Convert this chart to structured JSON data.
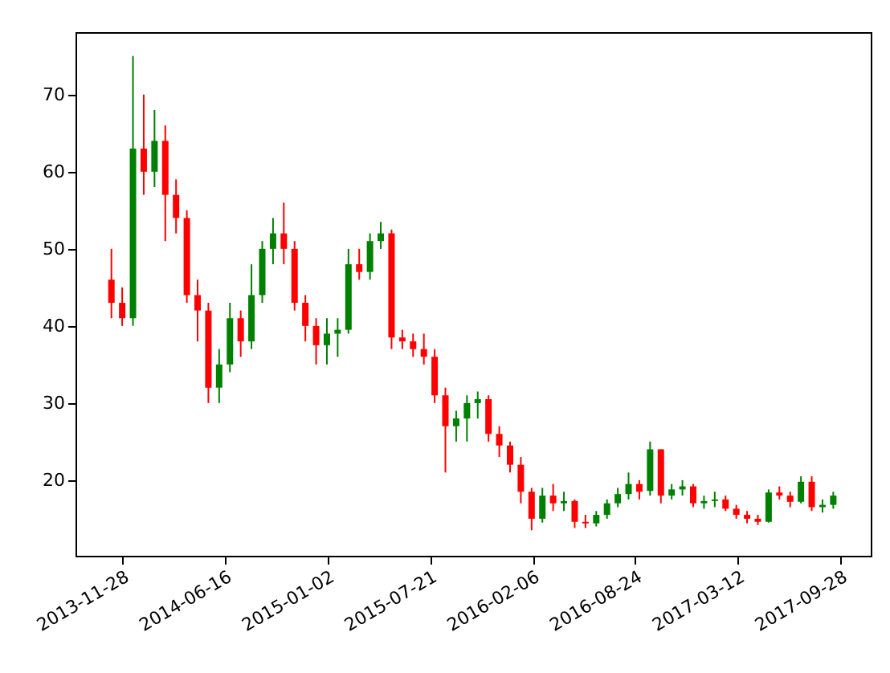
{
  "chart_data": {
    "type": "candlestick",
    "x": [
      "2013-11-07",
      "2013-11-28",
      "2013-12-19",
      "2014-01-09",
      "2014-01-30",
      "2014-02-20",
      "2014-03-13",
      "2014-04-03",
      "2014-04-24",
      "2014-05-15",
      "2014-06-05",
      "2014-06-26",
      "2014-07-17",
      "2014-08-07",
      "2014-08-28",
      "2014-09-18",
      "2014-10-09",
      "2014-10-30",
      "2014-11-20",
      "2014-12-11",
      "2015-01-01",
      "2015-01-22",
      "2015-02-12",
      "2015-03-05",
      "2015-03-26",
      "2015-04-16",
      "2015-05-07",
      "2015-05-28",
      "2015-06-18",
      "2015-07-09",
      "2015-07-30",
      "2015-08-20",
      "2015-09-10",
      "2015-10-01",
      "2015-10-22",
      "2015-11-12",
      "2015-12-03",
      "2015-12-24",
      "2016-01-14",
      "2016-02-04",
      "2016-02-25",
      "2016-03-17",
      "2016-04-07",
      "2016-04-28",
      "2016-05-19",
      "2016-06-09",
      "2016-06-30",
      "2016-07-21",
      "2016-08-11",
      "2016-09-01",
      "2016-09-22",
      "2016-10-13",
      "2016-11-03",
      "2016-11-24",
      "2016-12-15",
      "2017-01-05",
      "2017-01-26",
      "2017-02-16",
      "2017-03-09",
      "2017-03-30",
      "2017-04-20",
      "2017-05-11",
      "2017-06-01",
      "2017-06-22",
      "2017-07-13",
      "2017-08-03",
      "2017-08-24",
      "2017-09-14"
    ],
    "ohlc": [
      [
        46,
        50,
        41,
        43
      ],
      [
        43,
        45,
        40,
        41
      ],
      [
        41,
        75,
        40,
        63
      ],
      [
        63,
        70,
        57,
        60
      ],
      [
        60,
        68,
        58,
        64
      ],
      [
        64,
        66,
        51,
        57
      ],
      [
        57,
        59,
        52,
        54
      ],
      [
        54,
        55,
        43,
        44
      ],
      [
        44,
        46,
        38,
        42
      ],
      [
        42,
        43,
        30,
        32
      ],
      [
        32,
        37,
        30,
        35
      ],
      [
        35,
        43,
        34,
        41
      ],
      [
        41,
        42,
        36,
        38
      ],
      [
        38,
        48,
        37,
        44
      ],
      [
        44,
        51,
        43,
        50
      ],
      [
        50,
        54,
        48,
        52
      ],
      [
        52,
        56,
        48,
        50
      ],
      [
        50,
        51,
        42,
        43
      ],
      [
        43,
        44,
        38,
        40
      ],
      [
        40,
        41,
        35,
        37.5
      ],
      [
        37.5,
        41,
        35,
        39
      ],
      [
        39,
        41,
        36,
        39.5
      ],
      [
        39.5,
        50,
        39,
        48
      ],
      [
        48,
        50,
        46,
        47
      ],
      [
        47,
        52,
        46,
        51
      ],
      [
        51,
        53.5,
        50,
        52
      ],
      [
        52,
        52.5,
        37,
        38.5
      ],
      [
        38.5,
        39.5,
        37,
        38
      ],
      [
        38,
        39,
        36,
        37
      ],
      [
        37,
        39,
        35,
        36
      ],
      [
        36,
        37,
        30,
        31
      ],
      [
        31,
        32,
        21,
        27
      ],
      [
        27,
        29,
        25,
        28
      ],
      [
        28,
        31,
        25,
        30
      ],
      [
        30,
        31.5,
        28,
        30.5
      ],
      [
        30.5,
        31,
        25,
        26
      ],
      [
        26,
        27,
        23,
        24.5
      ],
      [
        24.5,
        25,
        21,
        22
      ],
      [
        22,
        23,
        17,
        18.5
      ],
      [
        18.5,
        19,
        13.5,
        15
      ],
      [
        15,
        19,
        14.5,
        18
      ],
      [
        18,
        19.5,
        16,
        17
      ],
      [
        17,
        18.5,
        16,
        17.3
      ],
      [
        17.3,
        17.5,
        13.8,
        14.6
      ],
      [
        14.6,
        15.5,
        13.8,
        14.4
      ],
      [
        14.4,
        16,
        14,
        15.5
      ],
      [
        15.5,
        17.5,
        15,
        17
      ],
      [
        17,
        19,
        16.5,
        18.2
      ],
      [
        18.2,
        21,
        17.5,
        19.5
      ],
      [
        19.5,
        20,
        17.5,
        18.5
      ],
      [
        18.6,
        25,
        18,
        24
      ],
      [
        24,
        24,
        17,
        18
      ],
      [
        18,
        19.5,
        17.5,
        18.8
      ],
      [
        18.8,
        20,
        18,
        19.2
      ],
      [
        19.2,
        19.5,
        16.5,
        17
      ],
      [
        17,
        18,
        16.3,
        17.3
      ],
      [
        17.3,
        18.5,
        16.5,
        17.5
      ],
      [
        17.5,
        18,
        16,
        16.3
      ],
      [
        16.3,
        16.8,
        15,
        15.5
      ],
      [
        15.5,
        16,
        14.4,
        15
      ],
      [
        15,
        15.5,
        14.2,
        14.6
      ],
      [
        14.6,
        18.8,
        14.5,
        18.4
      ],
      [
        18.4,
        19.2,
        17.5,
        18
      ],
      [
        18,
        18.5,
        16.5,
        17.2
      ],
      [
        17.2,
        20.5,
        17,
        19.8
      ],
      [
        19.8,
        20.5,
        16,
        16.5
      ],
      [
        16.5,
        17.5,
        15.8,
        16.8
      ],
      [
        16.8,
        18.5,
        16.3,
        18
      ]
    ],
    "colors": [
      "#ff0000",
      "#ff0000",
      "#008000",
      "#ff0000",
      "#008000",
      "#ff0000",
      "#ff0000",
      "#ff0000",
      "#ff0000",
      "#ff0000",
      "#008000",
      "#008000",
      "#ff0000",
      "#008000",
      "#008000",
      "#008000",
      "#ff0000",
      "#ff0000",
      "#ff0000",
      "#ff0000",
      "#008000",
      "#008000",
      "#008000",
      "#ff0000",
      "#008000",
      "#008000",
      "#ff0000",
      "#ff0000",
      "#ff0000",
      "#ff0000",
      "#ff0000",
      "#ff0000",
      "#008000",
      "#008000",
      "#008000",
      "#ff0000",
      "#ff0000",
      "#ff0000",
      "#ff0000",
      "#ff0000",
      "#008000",
      "#ff0000",
      "#008000",
      "#ff0000",
      "#ff0000",
      "#008000",
      "#008000",
      "#008000",
      "#008000",
      "#ff0000",
      "#008000",
      "#ff0000",
      "#008000",
      "#008000",
      "#ff0000",
      "#008000",
      "#008000",
      "#ff0000",
      "#ff0000",
      "#ff0000",
      "#ff0000",
      "#008000",
      "#ff0000",
      "#ff0000",
      "#008000",
      "#ff0000",
      "#008000",
      "#008000"
    ],
    "xlim": [
      "2013-08-29",
      "2017-11-26"
    ],
    "xticks": [
      "2013-11-28",
      "2014-06-16",
      "2015-01-02",
      "2015-07-21",
      "2016-02-06",
      "2016-08-24",
      "2017-03-12",
      "2017-09-28"
    ],
    "ylim": [
      10.2,
      78.1
    ],
    "yticks": [
      20,
      30,
      40,
      50,
      60,
      70
    ],
    "grid": false
  }
}
